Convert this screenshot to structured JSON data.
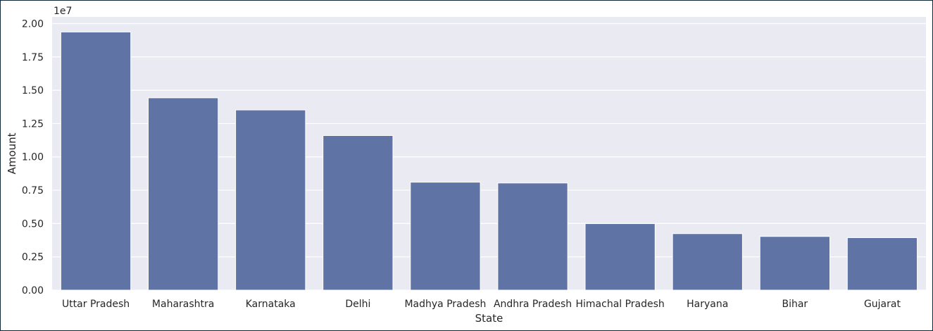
{
  "chart_data": {
    "type": "bar",
    "title": "",
    "xlabel": "State",
    "ylabel": "Amount",
    "y_offset_label": "1e7",
    "categories": [
      "Uttar Pradesh",
      "Maharashtra",
      "Karnataka",
      "Delhi",
      "Madhya Pradesh",
      "Andhra Pradesh",
      "Himachal Pradesh",
      "Haryana",
      "Bihar",
      "Gujarat"
    ],
    "values": [
      19370000,
      14430000,
      13520000,
      11600000,
      8100000,
      8040000,
      4990000,
      4240000,
      4030000,
      3940000
    ],
    "ylim": [
      0,
      20500000
    ],
    "yticks": [
      0,
      2500000,
      5000000,
      7500000,
      10000000,
      12500000,
      15000000,
      17500000,
      20000000
    ],
    "ytick_labels": [
      "0.00",
      "0.25",
      "0.50",
      "0.75",
      "1.00",
      "1.25",
      "1.50",
      "1.75",
      "2.00"
    ],
    "grid": true,
    "bar_color": "#5f73a4",
    "background_color": "#eaeaf2",
    "grid_color": "#ffffff"
  }
}
